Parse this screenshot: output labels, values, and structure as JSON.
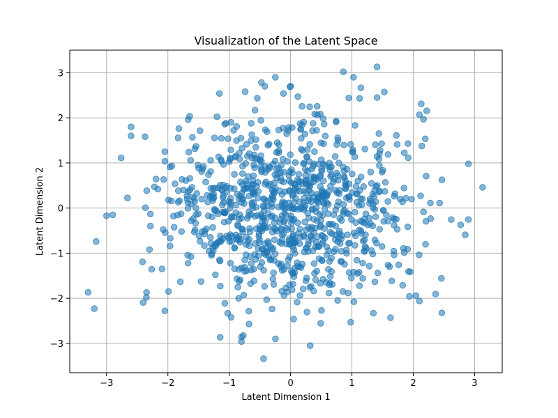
{
  "chart_data": {
    "type": "scatter",
    "title": "Visualization of the Latent Space",
    "xlabel": "Latent Dimension 1",
    "ylabel": "Latent Dimension 2",
    "xlim": [
      -3.6,
      3.45
    ],
    "ylim": [
      -3.65,
      3.5
    ],
    "xticks": [
      -3,
      -2,
      -1,
      0,
      1,
      2,
      3
    ],
    "yticks": [
      -3,
      -2,
      -1,
      0,
      1,
      2,
      3
    ],
    "grid": true,
    "marker_color": "#1f77b4",
    "marker_alpha": 0.55,
    "point_count": 1000,
    "distribution_note_points": [
      [
        -3.3,
        -1.87
      ],
      [
        -3.2,
        -2.23
      ],
      [
        -3.17,
        -0.74
      ],
      [
        -3.0,
        -0.17
      ],
      [
        -2.6,
        1.8
      ],
      [
        -2.6,
        1.6
      ],
      [
        -2.35,
        -1.98
      ],
      [
        -2.3,
        -0.92
      ],
      [
        -2.05,
        -2.28
      ],
      [
        -2.05,
        1.25
      ],
      [
        -1.99,
        -1.85
      ],
      [
        -1.16,
        2.54
      ],
      [
        -0.74,
        2.58
      ],
      [
        -0.44,
        -3.34
      ],
      [
        -0.8,
        -2.96
      ],
      [
        0.32,
        -3.05
      ],
      [
        0.86,
        3.02
      ],
      [
        1.41,
        3.13
      ],
      [
        2.13,
        2.31
      ],
      [
        3.13,
        0.46
      ],
      [
        2.43,
        0.11
      ],
      [
        2.1,
        -2.06
      ],
      [
        1.63,
        -2.43
      ],
      [
        1.35,
        -2.33
      ],
      [
        0.98,
        -2.53
      ],
      [
        0.05,
        -2.46
      ],
      [
        -0.97,
        -2.42
      ],
      [
        -0.39,
        -2.03
      ],
      [
        0.95,
        2.44
      ],
      [
        0.12,
        2.47
      ],
      [
        -0.58,
        2.17
      ],
      [
        1.44,
        1.65
      ]
    ]
  }
}
